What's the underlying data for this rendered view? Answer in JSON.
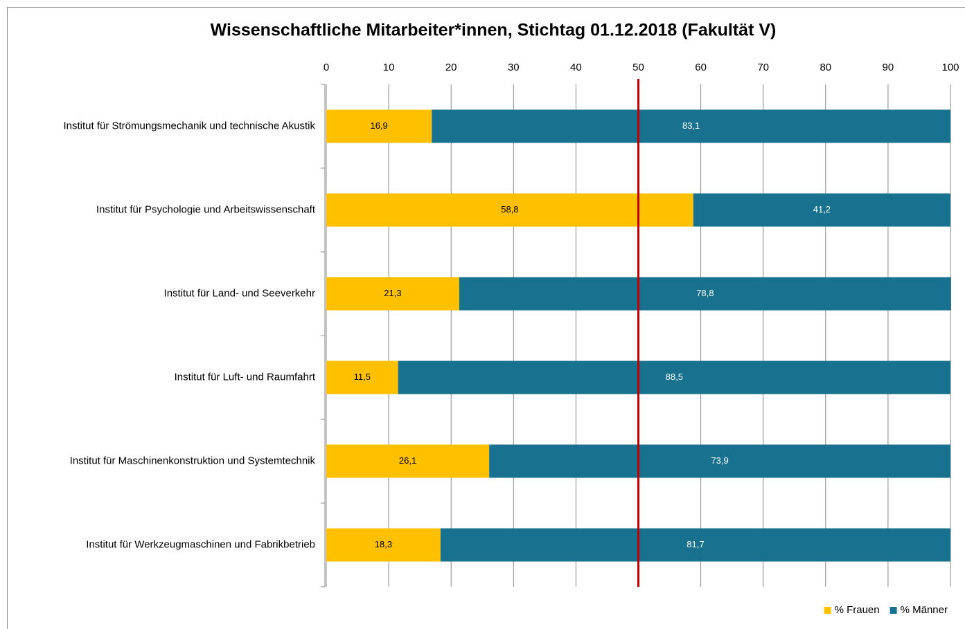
{
  "chart_data": {
    "type": "stacked_barh",
    "title": "Wissenschaftliche Mitarbeiter*innen, Stichtag 01.12.2018  (Fakultät V)",
    "categories": [
      "Institut für Strömungsmechanik und technische Akustik",
      "Institut für Psychologie und Arbeitswissenschaft",
      "Institut für Land- und Seeverkehr",
      "Institut für Luft- und Raumfahrt",
      "Institut für Maschinenkonstruktion und Systemtechnik",
      "Institut für Werkzeugmaschinen und Fabrikbetrieb"
    ],
    "series": [
      {
        "name": "% Frauen",
        "color": "#ffc000",
        "values": [
          16.9,
          58.8,
          21.3,
          11.5,
          26.1,
          18.3
        ],
        "value_labels": [
          "16,9",
          "58,8",
          "21,3",
          "11,5",
          "26,1",
          "18,3"
        ]
      },
      {
        "name": "% Männer",
        "color": "#17718f",
        "values": [
          83.1,
          41.2,
          78.8,
          88.5,
          73.9,
          81.7
        ],
        "value_labels": [
          "83,1",
          "41,2",
          "78,8",
          "88,5",
          "73,9",
          "81,7"
        ]
      }
    ],
    "xlim": [
      0,
      100
    ],
    "xticks": [
      0,
      10,
      20,
      30,
      40,
      50,
      60,
      70,
      80,
      90,
      100
    ],
    "grid": true,
    "reference_line": {
      "value": 50,
      "color": "#c00000"
    },
    "legend": "bottom-right"
  }
}
